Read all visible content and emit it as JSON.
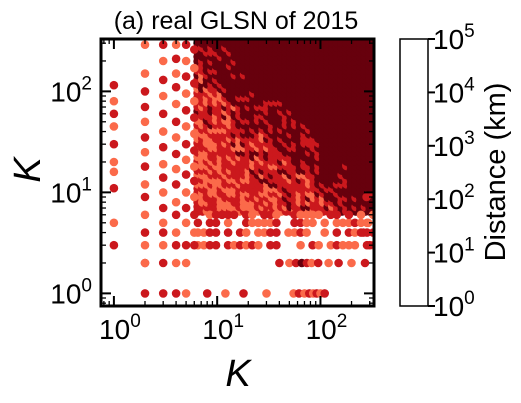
{
  "chart_data": {
    "type": "heatmap",
    "title": "(a) real GLSN of 2015",
    "xlabel": "K",
    "ylabel": "K",
    "x_scale": "log",
    "y_scale": "log",
    "xlim": [
      0.75,
      330
    ],
    "ylim": [
      0.75,
      330
    ],
    "x_ticks": [
      {
        "value": 1,
        "base": "10",
        "exp": "0"
      },
      {
        "value": 10,
        "base": "10",
        "exp": "1"
      },
      {
        "value": 100,
        "base": "10",
        "exp": "2"
      }
    ],
    "y_ticks": [
      {
        "value": 1,
        "base": "10",
        "exp": "0"
      },
      {
        "value": 10,
        "base": "10",
        "exp": "1"
      },
      {
        "value": 100,
        "base": "10",
        "exp": "2"
      }
    ],
    "colorbar": {
      "label": "Distance (km)",
      "scale": "log",
      "bounds": [
        1,
        10,
        100,
        1000,
        10000,
        100000
      ],
      "colors": [
        "#fff0eb",
        "#fcbba1",
        "#fb6a4a",
        "#cb181d",
        "#67000d"
      ],
      "ticks": [
        {
          "value": 1,
          "base": "10",
          "exp": "0"
        },
        {
          "value": 10,
          "base": "10",
          "exp": "1"
        },
        {
          "value": 100,
          "base": "10",
          "exp": "2"
        },
        {
          "value": 1000,
          "base": "10",
          "exp": "3"
        },
        {
          "value": 10000,
          "base": "10",
          "exp": "4"
        },
        {
          "value": 100000,
          "base": "10",
          "exp": "5"
        }
      ]
    },
    "points": [
      {
        "k1": 1,
        "k2": 115,
        "d": 1500
      },
      {
        "k1": 1,
        "k2": 80,
        "d": 300
      },
      {
        "k1": 1,
        "k2": 60,
        "d": 2000
      },
      {
        "k1": 1,
        "k2": 45,
        "d": 300
      },
      {
        "k1": 1,
        "k2": 30,
        "d": 2000
      },
      {
        "k1": 1,
        "k2": 20,
        "d": 300
      },
      {
        "k1": 1,
        "k2": 16,
        "d": 300
      },
      {
        "k1": 1,
        "k2": 11,
        "d": 2000
      },
      {
        "k1": 1,
        "k2": 5,
        "d": 300
      },
      {
        "k1": 1,
        "k2": 3,
        "d": 2000
      },
      {
        "k1": 2,
        "k2": 290,
        "d": 300
      },
      {
        "k1": 2,
        "k2": 150,
        "d": 300
      },
      {
        "k1": 2,
        "k2": 100,
        "d": 2000
      },
      {
        "k1": 2,
        "k2": 70,
        "d": 2000
      },
      {
        "k1": 2,
        "k2": 50,
        "d": 300
      },
      {
        "k1": 2,
        "k2": 35,
        "d": 2000
      },
      {
        "k1": 2,
        "k2": 25,
        "d": 300
      },
      {
        "k1": 2,
        "k2": 18,
        "d": 2000
      },
      {
        "k1": 2,
        "k2": 12,
        "d": 300
      },
      {
        "k1": 2,
        "k2": 9,
        "d": 2000
      },
      {
        "k1": 2,
        "k2": 6,
        "d": 300
      },
      {
        "k1": 2,
        "k2": 4,
        "d": 2000
      },
      {
        "k1": 2,
        "k2": 3,
        "d": 300
      },
      {
        "k1": 2,
        "k2": 2,
        "d": 2000
      },
      {
        "k1": 2,
        "k2": 1,
        "d": 2000
      },
      {
        "k1": 3,
        "k2": 290,
        "d": 2000
      },
      {
        "k1": 3,
        "k2": 200,
        "d": 300
      },
      {
        "k1": 3,
        "k2": 130,
        "d": 2000
      },
      {
        "k1": 3,
        "k2": 90,
        "d": 300
      },
      {
        "k1": 3,
        "k2": 60,
        "d": 2000
      },
      {
        "k1": 3,
        "k2": 40,
        "d": 300
      },
      {
        "k1": 3,
        "k2": 28,
        "d": 2000
      },
      {
        "k1": 3,
        "k2": 19,
        "d": 300
      },
      {
        "k1": 3,
        "k2": 14,
        "d": 2000
      },
      {
        "k1": 3,
        "k2": 10,
        "d": 300
      },
      {
        "k1": 3,
        "k2": 7,
        "d": 2000
      },
      {
        "k1": 3,
        "k2": 5,
        "d": 300
      },
      {
        "k1": 3,
        "k2": 4,
        "d": 2000
      },
      {
        "k1": 3,
        "k2": 3,
        "d": 300
      },
      {
        "k1": 3,
        "k2": 2,
        "d": 2000
      },
      {
        "k1": 4,
        "k2": 290,
        "d": 300
      },
      {
        "k1": 4,
        "k2": 210,
        "d": 2000
      },
      {
        "k1": 4,
        "k2": 150,
        "d": 300
      },
      {
        "k1": 4,
        "k2": 110,
        "d": 2000
      },
      {
        "k1": 4,
        "k2": 75,
        "d": 300
      },
      {
        "k1": 4,
        "k2": 50,
        "d": 2000
      },
      {
        "k1": 4,
        "k2": 35,
        "d": 300
      },
      {
        "k1": 4,
        "k2": 24,
        "d": 2000
      },
      {
        "k1": 4,
        "k2": 17,
        "d": 300
      },
      {
        "k1": 4,
        "k2": 12,
        "d": 2000
      },
      {
        "k1": 4,
        "k2": 8,
        "d": 300
      },
      {
        "k1": 4,
        "k2": 6,
        "d": 2000
      },
      {
        "k1": 4,
        "k2": 4,
        "d": 300
      },
      {
        "k1": 4,
        "k2": 3,
        "d": 2000
      },
      {
        "k1": 4,
        "k2": 2,
        "d": 300
      },
      {
        "k1": 4,
        "k2": 1,
        "d": 2000
      },
      {
        "k1": 5,
        "k2": 290,
        "d": 2000
      },
      {
        "k1": 5,
        "k2": 200,
        "d": 300
      },
      {
        "k1": 5,
        "k2": 140,
        "d": 2000
      },
      {
        "k1": 5,
        "k2": 95,
        "d": 300
      },
      {
        "k1": 5,
        "k2": 65,
        "d": 2000
      },
      {
        "k1": 5,
        "k2": 45,
        "d": 300
      },
      {
        "k1": 5,
        "k2": 30,
        "d": 2000
      },
      {
        "k1": 5,
        "k2": 21,
        "d": 300
      },
      {
        "k1": 5,
        "k2": 15,
        "d": 2000
      },
      {
        "k1": 5,
        "k2": 10,
        "d": 300
      },
      {
        "k1": 5,
        "k2": 7,
        "d": 2000
      },
      {
        "k1": 5,
        "k2": 5,
        "d": 300
      },
      {
        "k1": 5,
        "k2": 3,
        "d": 2000
      },
      {
        "k1": 5,
        "k2": 2,
        "d": 300
      },
      {
        "k1": 6,
        "k2": 260,
        "d": 2000
      },
      {
        "k1": 6,
        "k2": 170,
        "d": 300
      },
      {
        "k1": 6,
        "k2": 120,
        "d": 2000
      },
      {
        "k1": 6,
        "k2": 80,
        "d": 300
      },
      {
        "k1": 6,
        "k2": 55,
        "d": 2000
      },
      {
        "k1": 6,
        "k2": 38,
        "d": 300
      },
      {
        "k1": 6,
        "k2": 26,
        "d": 2000
      },
      {
        "k1": 6,
        "k2": 18,
        "d": 300
      },
      {
        "k1": 6,
        "k2": 13,
        "d": 2000
      },
      {
        "k1": 6,
        "k2": 9,
        "d": 300
      },
      {
        "k1": 6,
        "k2": 6,
        "d": 2000
      },
      {
        "k1": 6,
        "k2": 4,
        "d": 300
      },
      {
        "k1": 6,
        "k2": 3,
        "d": 2000
      },
      {
        "k1": 2,
        "k2": 2,
        "d": 300
      },
      {
        "k1": 3,
        "k2": 1,
        "d": 2000
      },
      {
        "k1": 5,
        "k2": 1,
        "d": 300
      },
      {
        "k1": 8,
        "k2": 1,
        "d": 2000
      },
      {
        "k1": 12,
        "k2": 1,
        "d": 300
      },
      {
        "k1": 18,
        "k2": 1,
        "d": 2000
      },
      {
        "k1": 30,
        "k2": 1,
        "d": 300
      },
      {
        "k1": 55,
        "k2": 1,
        "d": 300
      },
      {
        "k1": 62,
        "k2": 1,
        "d": 2000
      },
      {
        "k1": 70,
        "k2": 1,
        "d": 300
      },
      {
        "k1": 78,
        "k2": 1,
        "d": 2000
      },
      {
        "k1": 85,
        "k2": 1,
        "d": 300
      },
      {
        "k1": 92,
        "k2": 1,
        "d": 2000
      },
      {
        "k1": 100,
        "k2": 1,
        "d": 300
      },
      {
        "k1": 110,
        "k2": 1,
        "d": 2000
      },
      {
        "k1": 40,
        "k2": 2,
        "d": 2000
      },
      {
        "k1": 50,
        "k2": 2,
        "d": 300
      },
      {
        "k1": 58,
        "k2": 2,
        "d": 2000
      },
      {
        "k1": 66,
        "k2": 2,
        "d": 20000
      },
      {
        "k1": 74,
        "k2": 2,
        "d": 2000
      },
      {
        "k1": 82,
        "k2": 2,
        "d": 300
      },
      {
        "k1": 95,
        "k2": 2,
        "d": 2000
      },
      {
        "k1": 120,
        "k2": 2,
        "d": 300
      },
      {
        "k1": 150,
        "k2": 2,
        "d": 2000
      },
      {
        "k1": 200,
        "k2": 2,
        "d": 300
      },
      {
        "k1": 270,
        "k2": 2,
        "d": 2000
      },
      {
        "k1": 280,
        "k2": 9,
        "d": 2000
      },
      {
        "k1": 290,
        "k2": 5,
        "d": 300
      },
      {
        "k1": 300,
        "k2": 3,
        "d": 2000
      },
      {
        "k1": 260,
        "k2": 4,
        "d": 2000
      }
    ],
    "grid": false
  }
}
